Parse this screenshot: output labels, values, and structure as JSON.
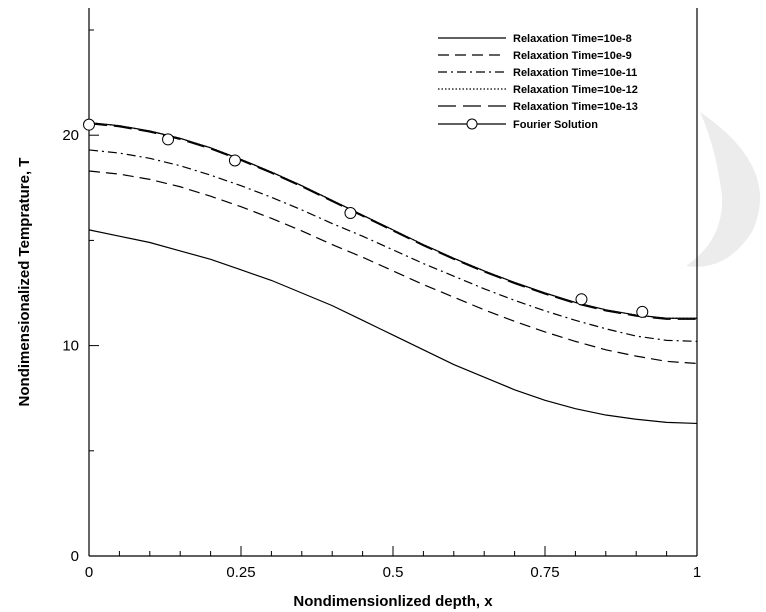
{
  "chart_data": {
    "type": "line",
    "xlabel": "Nondimensionlized depth, x",
    "ylabel": "Nondimensionalized Temprature, T",
    "xlim": [
      0,
      1
    ],
    "ylim": [
      0,
      25
    ],
    "x_ticks": [
      0,
      0.25,
      0.5,
      0.75,
      1
    ],
    "x_tick_labels": [
      "0",
      "0.25",
      "0.5",
      "0.75",
      "1"
    ],
    "y_ticks": [
      0,
      10,
      20
    ],
    "y_tick_labels": [
      "0",
      "10",
      "20"
    ],
    "grid": false,
    "legend_position": "top-right",
    "x": [
      0,
      0.05,
      0.1,
      0.15,
      0.2,
      0.25,
      0.3,
      0.35,
      0.4,
      0.45,
      0.5,
      0.55,
      0.6,
      0.65,
      0.7,
      0.75,
      0.8,
      0.85,
      0.9,
      0.95,
      1
    ],
    "series": [
      {
        "name": "Relaxation Time=10e-8",
        "style": "solid",
        "color": "#000000",
        "values": [
          15.5,
          15.2,
          14.9,
          14.5,
          14.1,
          13.6,
          13.1,
          12.5,
          11.9,
          11.2,
          10.5,
          9.8,
          9.1,
          8.5,
          7.9,
          7.4,
          7.0,
          6.7,
          6.5,
          6.35,
          6.3
        ]
      },
      {
        "name": "Relaxation Time=10e-9",
        "style": "dashed",
        "color": "#000000",
        "values": [
          18.3,
          18.15,
          17.9,
          17.55,
          17.1,
          16.6,
          16.05,
          15.45,
          14.8,
          14.2,
          13.55,
          12.9,
          12.3,
          11.7,
          11.15,
          10.65,
          10.2,
          9.8,
          9.5,
          9.25,
          9.15
        ]
      },
      {
        "name": "Relaxation Time=10e-11",
        "style": "dashdot",
        "color": "#000000",
        "values": [
          19.3,
          19.15,
          18.9,
          18.55,
          18.1,
          17.6,
          17.05,
          16.45,
          15.8,
          15.2,
          14.55,
          13.9,
          13.3,
          12.7,
          12.15,
          11.65,
          11.2,
          10.8,
          10.45,
          10.25,
          10.2
        ]
      },
      {
        "name": "Relaxation Time=10e-12",
        "style": "dotted",
        "color": "#000000",
        "values": [
          20.6,
          20.45,
          20.2,
          19.85,
          19.4,
          18.85,
          18.25,
          17.6,
          16.9,
          16.2,
          15.5,
          14.8,
          14.15,
          13.55,
          13.0,
          12.5,
          12.05,
          11.7,
          11.45,
          11.3,
          11.3
        ]
      },
      {
        "name": "Relaxation Time=10e-13",
        "style": "longdash",
        "color": "#000000",
        "values": [
          20.55,
          20.4,
          20.15,
          19.8,
          19.35,
          18.8,
          18.2,
          17.55,
          16.85,
          16.15,
          15.45,
          14.75,
          14.1,
          13.5,
          12.95,
          12.45,
          12.0,
          11.65,
          11.4,
          11.25,
          11.25
        ]
      },
      {
        "name": "Fourier Solution",
        "style": "solid-circles",
        "color": "#000000",
        "values": [
          20.6,
          20.45,
          20.2,
          19.85,
          19.4,
          18.85,
          18.25,
          17.6,
          16.9,
          16.2,
          15.5,
          14.8,
          14.15,
          13.55,
          13.0,
          12.5,
          12.05,
          11.7,
          11.45,
          11.3,
          11.3
        ],
        "markers": {
          "x": [
            0,
            0.13,
            0.24,
            0.43,
            0.81,
            0.91
          ],
          "y": [
            20.5,
            19.8,
            18.8,
            16.3,
            12.2,
            11.6
          ]
        }
      }
    ]
  }
}
